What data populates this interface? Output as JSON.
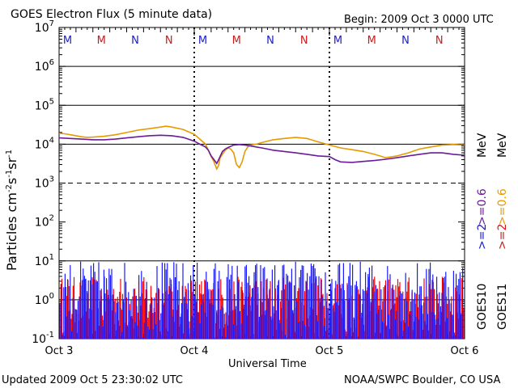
{
  "chart_data": {
    "type": "line",
    "title": "GOES Electron Flux (5 minute data)",
    "begin_label": "Begin: 2009 Oct 3 0000 UTC",
    "xlabel": "Universal Time",
    "ylabel": "Particles cm",
    "footer_left": "Updated 2009 Oct  5 23:30:02 UTC",
    "footer_right": "NOAA/SWPC Boulder, CO USA",
    "x_ticks": [
      "Oct 3",
      "Oct 4",
      "Oct 5",
      "Oct 6"
    ],
    "xlim": [
      0,
      72
    ],
    "x_units": "hours since 2009 Oct 3 0000 UTC",
    "y_scale": "log",
    "ylim": [
      0.1,
      10000000
    ],
    "y_tick_bases": [
      "10",
      "10",
      "10",
      "10",
      "10",
      "10",
      "10",
      "10",
      "10"
    ],
    "y_tick_exps": [
      "-1",
      "0",
      "1",
      "2",
      "3",
      "4",
      "5",
      "6",
      "7"
    ],
    "y_tick_values": [
      0.1,
      1,
      10,
      100,
      1000,
      10000,
      100000,
      1000000,
      10000000
    ],
    "reference_lines": [
      {
        "value": 1000,
        "style": "dashed"
      },
      {
        "value": 10000,
        "style": "solid"
      },
      {
        "value": 100000,
        "style": "solid"
      },
      {
        "value": 1000000,
        "style": "solid"
      },
      {
        "value": 10,
        "style": "solid"
      },
      {
        "value": 1,
        "style": "solid"
      }
    ],
    "mn_markers": [
      {
        "label": "M",
        "x": 1.5,
        "color": "#1b1bcc"
      },
      {
        "label": "M",
        "x": 7.5,
        "color": "#cc1b1b"
      },
      {
        "label": "N",
        "x": 13.5,
        "color": "#1b1bcc"
      },
      {
        "label": "N",
        "x": 19.5,
        "color": "#cc1b1b"
      },
      {
        "label": "M",
        "x": 25.5,
        "color": "#1b1bcc"
      },
      {
        "label": "M",
        "x": 31.5,
        "color": "#cc1b1b"
      },
      {
        "label": "N",
        "x": 37.5,
        "color": "#1b1bcc"
      },
      {
        "label": "N",
        "x": 43.5,
        "color": "#cc1b1b"
      },
      {
        "label": "M",
        "x": 49.5,
        "color": "#1b1bcc"
      },
      {
        "label": "M",
        "x": 55.5,
        "color": "#cc1b1b"
      },
      {
        "label": "N",
        "x": 61.5,
        "color": "#1b1bcc"
      },
      {
        "label": "N",
        "x": 67.5,
        "color": "#cc1b1b"
      }
    ],
    "day_boundaries": [
      24,
      48
    ],
    "right_legend": [
      {
        "text": "GOES10",
        "color": "#000000"
      },
      {
        "text": "GOES11",
        "color": "#000000"
      },
      {
        "text": ">=2",
        "color": "#1b1bcc"
      },
      {
        "text": ">=2",
        "color": "#cc1b1b"
      },
      {
        "text": ">=0.6",
        "color": "#6a1b9a"
      },
      {
        "text": ">=0.6",
        "color": "#e69a00"
      },
      {
        "text": "MeV",
        "color": "#000000"
      },
      {
        "text": "MeV",
        "color": "#000000"
      }
    ],
    "series": [
      {
        "name": "GOES11 >=0.6 MeV",
        "color": "#e69a00",
        "x": [
          0,
          1,
          2,
          3,
          4,
          5,
          6,
          8,
          10,
          12,
          14,
          16,
          18,
          19,
          20,
          22,
          24,
          25,
          26,
          26.5,
          27,
          27.5,
          28,
          28.3,
          28.6,
          29,
          29.5,
          30,
          30.5,
          31,
          31.5,
          32,
          32.5,
          33,
          33.5,
          34,
          35,
          36,
          38,
          40,
          42,
          44,
          46,
          48,
          50,
          52,
          54,
          56,
          58,
          60,
          62,
          64,
          66,
          68,
          70,
          72
        ],
        "y": [
          19000,
          18500,
          17500,
          16500,
          15500,
          15000,
          15200,
          16000,
          17500,
          20000,
          23000,
          25000,
          27500,
          29000,
          27500,
          24000,
          18000,
          13500,
          10000,
          7000,
          4800,
          3500,
          2300,
          2800,
          4500,
          5500,
          7000,
          8000,
          7500,
          6000,
          3000,
          2500,
          3500,
          6500,
          8500,
          9500,
          10000,
          11000,
          13000,
          14000,
          15000,
          14000,
          11500,
          9500,
          8000,
          7200,
          6500,
          5500,
          4500,
          5000,
          6000,
          7500,
          8500,
          9500,
          9800,
          9500
        ]
      },
      {
        "name": "GOES10 >=0.6 MeV",
        "color": "#6a1b9a",
        "x": [
          0,
          2,
          4,
          6,
          8,
          10,
          12,
          14,
          16,
          18,
          20,
          22,
          24,
          25,
          26,
          26.5,
          27,
          27.5,
          28,
          28.5,
          29,
          29.5,
          30,
          31,
          32,
          33,
          34,
          35,
          36,
          37,
          38,
          40,
          42,
          44,
          46,
          48,
          49,
          50,
          52,
          54,
          56,
          58,
          60,
          62,
          64,
          66,
          68,
          70,
          72
        ],
        "y": [
          14500,
          14000,
          13500,
          13000,
          13000,
          13500,
          14500,
          15500,
          16500,
          17000,
          16500,
          15000,
          12000,
          10000,
          8500,
          7000,
          5000,
          4000,
          3200,
          4500,
          6500,
          7500,
          8200,
          9500,
          9800,
          9500,
          9000,
          8500,
          8000,
          7500,
          7000,
          6500,
          6000,
          5500,
          5000,
          4800,
          4000,
          3500,
          3400,
          3600,
          3800,
          4100,
          4500,
          5000,
          5500,
          6000,
          6000,
          5500,
          5200
        ]
      },
      {
        "name": "GOES11 >=2 MeV",
        "color": "#ff0000",
        "kind": "noise",
        "typical_range": [
          0.1,
          4
        ]
      },
      {
        "name": "GOES10 >=2 MeV",
        "color": "#1b1bff",
        "kind": "noise",
        "typical_range": [
          0.1,
          10
        ]
      }
    ]
  }
}
